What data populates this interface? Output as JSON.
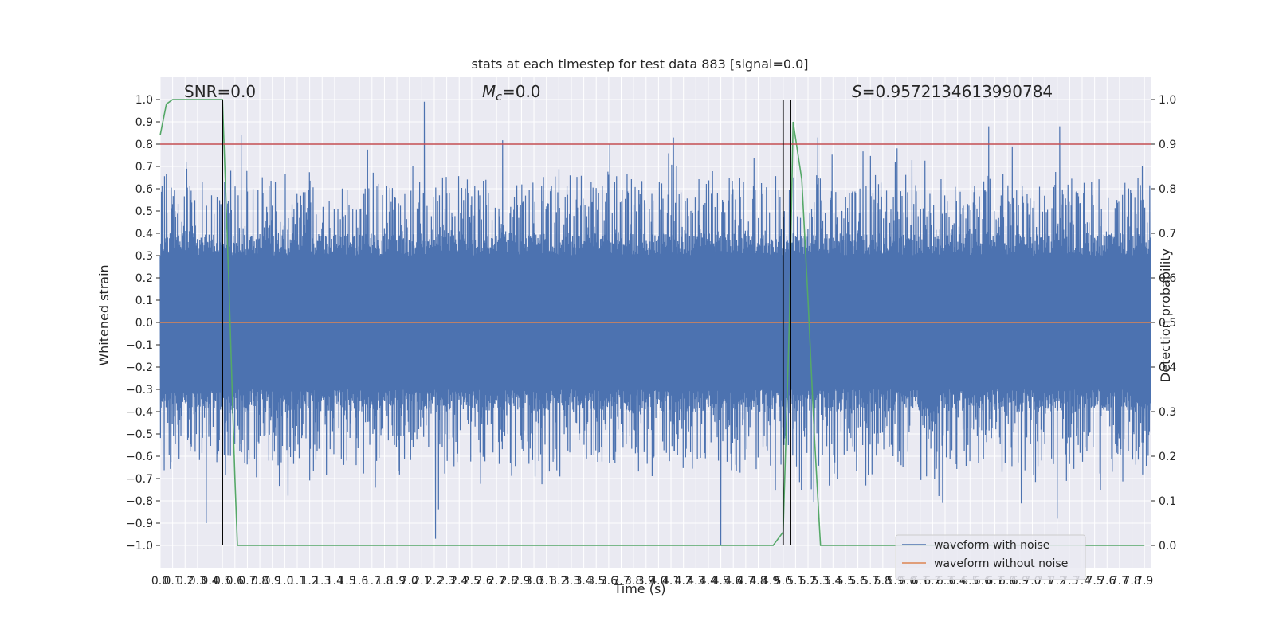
{
  "chart_data": {
    "type": "line",
    "title": "stats at each timestep for test data 883 [signal=0.0]",
    "xlabel": "Time (s)",
    "ylabel": "Whitened strain",
    "y2label": "Detection probability",
    "xlim": [
      0,
      7.95
    ],
    "ylim": [
      -1.1,
      1.1
    ],
    "y2lim": [
      -0.05,
      1.05
    ],
    "xticks": [
      0.0,
      0.1,
      0.2,
      0.3,
      0.4,
      0.5,
      0.6,
      0.7,
      0.8,
      0.9,
      1.0,
      1.1,
      1.2,
      1.3,
      1.4,
      1.5,
      1.6,
      1.7,
      1.8,
      1.9,
      2.0,
      2.1,
      2.2,
      2.3,
      2.4,
      2.5,
      2.6,
      2.7,
      2.8,
      2.9,
      3.0,
      3.1,
      3.2,
      3.3,
      3.4,
      3.5,
      3.6,
      3.7,
      3.8,
      3.9,
      4.0,
      4.1,
      4.2,
      4.3,
      4.4,
      4.5,
      4.6,
      4.7,
      4.8,
      4.9,
      5.0,
      5.1,
      5.2,
      5.3,
      5.4,
      5.5,
      5.6,
      5.7,
      5.8,
      5.9,
      6.0,
      6.1,
      6.2,
      6.3,
      6.4,
      6.5,
      6.6,
      6.7,
      6.8,
      6.9,
      7.0,
      7.1,
      7.2,
      7.3,
      7.4,
      7.5,
      7.6,
      7.7,
      7.8,
      7.9
    ],
    "xtick_labels": [
      "0.0",
      "0.1",
      "0.2",
      "0.3",
      "0.4",
      "0.5",
      "0.6",
      "0.7",
      "0.8",
      "0.9",
      "1.0",
      "1.1",
      "1.2",
      "1.3",
      "1.4",
      "1.5",
      "1.6",
      "1.7",
      "1.8",
      "1.9",
      "2.0",
      "2.1",
      "2.2",
      "2.3",
      "2.4",
      "2.5",
      "2.6",
      "2.7",
      "2.8",
      "2.9",
      "3.0",
      "3.1",
      "3.2",
      "3.3",
      "3.4",
      "3.5",
      "3.6",
      "3.7",
      "3.8",
      "3.9",
      "4.0",
      "4.1",
      "4.2",
      "4.3",
      "4.4",
      "4.5",
      "4.6",
      "4.7",
      "4.8",
      "4.9",
      "5.0",
      "5.1",
      "5.2",
      "5.3",
      "5.4",
      "5.5",
      "5.6",
      "5.7",
      "5.8",
      "5.9",
      "6.0",
      "6.1",
      "6.2",
      "6.3",
      "6.4",
      "6.5",
      "6.6",
      "6.7",
      "6.8",
      "6.9",
      "7.0",
      "7.1",
      "7.2",
      "7.3",
      "7.4",
      "7.5",
      "7.6",
      "7.7",
      "7.8",
      "7.9"
    ],
    "yticks": [
      -1.0,
      -0.9,
      -0.8,
      -0.7,
      -0.6,
      -0.5,
      -0.4,
      -0.3,
      -0.2,
      -0.1,
      0.0,
      0.1,
      0.2,
      0.3,
      0.4,
      0.5,
      0.6,
      0.7,
      0.8,
      0.9,
      1.0
    ],
    "ytick_labels": [
      "−1.0",
      "−0.9",
      "−0.8",
      "−0.7",
      "−0.6",
      "−0.5",
      "−0.4",
      "−0.3",
      "−0.2",
      "−0.1",
      "0.0",
      "0.1",
      "0.2",
      "0.3",
      "0.4",
      "0.5",
      "0.6",
      "0.7",
      "0.8",
      "0.9",
      "1.0"
    ],
    "y2ticks": [
      0.0,
      0.1,
      0.2,
      0.3,
      0.4,
      0.5,
      0.6,
      0.7,
      0.8,
      0.9,
      1.0
    ],
    "y2tick_labels": [
      "0.0",
      "0.1",
      "0.2",
      "0.3",
      "0.4",
      "0.5",
      "0.6",
      "0.7",
      "0.8",
      "0.9",
      "1.0"
    ],
    "annotations": {
      "snr": "SNR=0.0",
      "mc_symbol": "M",
      "mc_sub": "c",
      "mc_value": "=0.0",
      "s_symbol": "S",
      "s_value": "=0.9572134613990784"
    },
    "series": [
      {
        "name": "waveform with noise",
        "color": "#4c72b0",
        "kind": "noise",
        "x_range": [
          0,
          7.95
        ],
        "core_band": [
          -0.3,
          0.3
        ],
        "notable_peaks": [
          {
            "x": 0.65,
            "y": 0.84
          },
          {
            "x": 2.12,
            "y": 0.99
          },
          {
            "x": 4.12,
            "y": 0.83
          },
          {
            "x": 4.5,
            "y": -1.0
          },
          {
            "x": 0.37,
            "y": -0.9
          },
          {
            "x": 2.21,
            "y": -0.97
          },
          {
            "x": 6.65,
            "y": 0.88
          },
          {
            "x": 7.22,
            "y": 0.88
          },
          {
            "x": 7.2,
            "y": -0.88
          }
        ]
      },
      {
        "name": "waveform without noise",
        "color": "#dd8452",
        "x": [
          0,
          7.95
        ],
        "y": [
          0.0,
          0.0
        ]
      },
      {
        "name": "detection probability",
        "color": "#55a868",
        "axis": "right",
        "x": [
          0.0,
          0.05,
          0.1,
          0.2,
          0.3,
          0.4,
          0.45,
          0.5,
          0.55,
          0.6,
          0.62,
          0.8,
          1.0,
          2.0,
          3.0,
          4.0,
          4.5,
          4.92,
          5.0,
          5.05,
          5.08,
          5.15,
          5.2,
          5.25,
          5.3,
          5.5,
          6.0,
          6.5,
          7.0,
          7.5,
          7.9
        ],
        "y": [
          0.92,
          0.99,
          1.0,
          1.0,
          1.0,
          1.0,
          1.0,
          1.0,
          0.6,
          0.15,
          0.0,
          0.0,
          0.0,
          0.0,
          0.0,
          0.0,
          0.0,
          0.0,
          0.03,
          0.5,
          0.95,
          0.82,
          0.55,
          0.25,
          0.0,
          0.0,
          0.0,
          0.0,
          0.0,
          0.0,
          0.0
        ]
      }
    ],
    "hlines": [
      {
        "y2": 0.9,
        "color": "#c44e52"
      }
    ],
    "vlines": [
      {
        "x": 0.5,
        "color": "#000000"
      },
      {
        "x": 5.0,
        "color": "#000000"
      },
      {
        "x": 5.06,
        "color": "#000000"
      }
    ],
    "legend": {
      "position": "lower-right",
      "entries": [
        {
          "label": "waveform with noise",
          "color": "#4c72b0"
        },
        {
          "label": "waveform without noise",
          "color": "#dd8452"
        }
      ]
    },
    "grid": true,
    "colors": {
      "plot_bg": "#eaeaf2",
      "grid": "#ffffff",
      "text": "#262626"
    }
  }
}
